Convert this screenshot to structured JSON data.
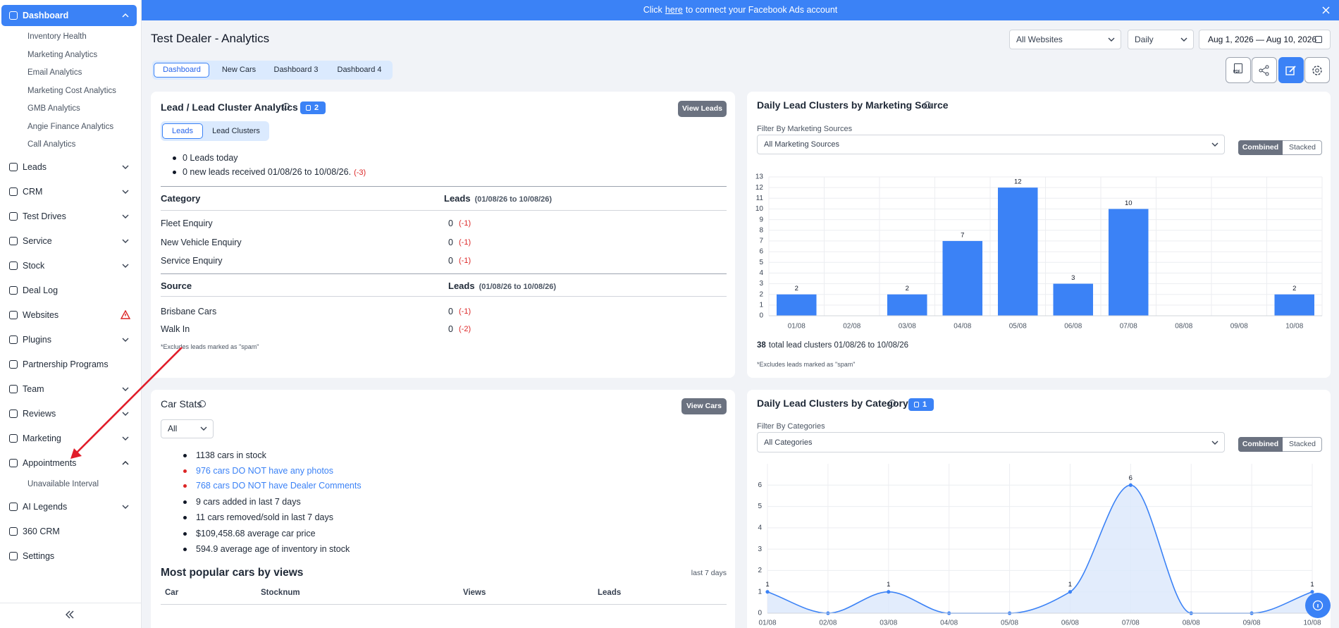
{
  "banner": {
    "before": "Click",
    "link": "here",
    "after": "to connect your Facebook Ads account"
  },
  "sidebar": {
    "items": [
      {
        "label": "Dashboard",
        "active": true,
        "expanded": true,
        "children": [
          "Inventory Health",
          "Marketing Analytics",
          "Email Analytics",
          "Marketing Cost Analytics",
          "GMB Analytics",
          "Angie Finance Analytics",
          "Call Analytics"
        ]
      },
      {
        "label": "Leads",
        "expandable": true
      },
      {
        "label": "CRM",
        "expandable": true
      },
      {
        "label": "Test Drives",
        "expandable": true
      },
      {
        "label": "Service",
        "expandable": true
      },
      {
        "label": "Stock",
        "expandable": true
      },
      {
        "label": "Deal Log"
      },
      {
        "label": "Websites",
        "alert": true
      },
      {
        "label": "Plugins",
        "expandable": true
      },
      {
        "label": "Partnership Programs"
      },
      {
        "label": "Team",
        "expandable": true
      },
      {
        "label": "Reviews",
        "expandable": true
      },
      {
        "label": "Marketing",
        "expandable": true
      },
      {
        "label": "Appointments",
        "expanded": true,
        "children": [
          "Unavailable Interval"
        ]
      },
      {
        "label": "AI Legends",
        "expandable": true
      },
      {
        "label": "360 CRM"
      },
      {
        "label": "Settings"
      }
    ]
  },
  "header": {
    "title": "Test Dealer - Analytics",
    "website_filter": "All Websites",
    "interval": "Daily",
    "date_range": "Aug 1, 2026 — Aug 10, 2026",
    "pdf_label": "PDF"
  },
  "tabs": {
    "items": [
      "Dashboard",
      "New Cars",
      "Dashboard 3",
      "Dashboard 4"
    ],
    "active": 0
  },
  "lead_panel": {
    "title": "Lead / Lead Cluster Analytics",
    "badge": 2,
    "button": "View Leads",
    "toggle": {
      "options": [
        "Leads",
        "Lead Clusters"
      ],
      "active": 0
    },
    "summary": [
      {
        "text": "0 Leads today"
      },
      {
        "text": "0 new leads received 01/08/26 to 10/08/26.",
        "change": "(-3)"
      }
    ],
    "tables": [
      {
        "heading": "Category",
        "value_heading": "Leads",
        "period": "(01/08/26 to 10/08/26)",
        "rows": [
          {
            "name": "Fleet Enquiry",
            "value": 0,
            "change": "(-1)"
          },
          {
            "name": "New Vehicle Enquiry",
            "value": 0,
            "change": "(-1)"
          },
          {
            "name": "Service Enquiry",
            "value": 0,
            "change": "(-1)"
          }
        ]
      },
      {
        "heading": "Source",
        "value_heading": "Leads",
        "period": "(01/08/26 to 10/08/26)",
        "rows": [
          {
            "name": "Brisbane Cars",
            "value": 0,
            "change": "(-1)"
          },
          {
            "name": "Walk In",
            "value": 0,
            "change": "(-2)"
          }
        ]
      }
    ],
    "footnote": "*Excludes leads marked as \"spam\""
  },
  "source_panel": {
    "title": "Daily Lead Clusters by Marketing Source",
    "filter_label": "Filter By Marketing Sources",
    "filter": "All Marketing Sources",
    "toggle": {
      "options": [
        "Combined",
        "Stacked"
      ],
      "active": 0
    },
    "total": 38,
    "total_text": "total lead clusters 01/08/26 to 10/08/26",
    "footnote": "*Excludes leads marked as \"spam\""
  },
  "car_panel": {
    "title": "Car Stats",
    "button": "View Cars",
    "filter": "All",
    "stats": [
      {
        "text": "1138 cars in stock"
      },
      {
        "text": "976 cars DO NOT have any photos",
        "warning": true
      },
      {
        "text": "768 cars DO NOT have Dealer Comments",
        "warning": true
      },
      {
        "text": "9 cars added in last 7 days"
      },
      {
        "text": "11 cars removed/sold in last 7 days"
      },
      {
        "text": "$109,458.68 average car price"
      },
      {
        "text": "594.9 average age of inventory in stock"
      }
    ],
    "popular": {
      "title": "Most popular cars by views",
      "period": "last 7 days",
      "columns": [
        "Car",
        "Stocknum",
        "Views",
        "Leads"
      ]
    }
  },
  "category_panel": {
    "title": "Daily Lead Clusters by Category",
    "badge": 1,
    "filter_label": "Filter By Categories",
    "filter": "All Categories",
    "toggle": {
      "options": [
        "Combined",
        "Stacked"
      ],
      "active": 0
    }
  },
  "chart_data": [
    {
      "type": "bar",
      "categories": [
        "01/08",
        "02/08",
        "03/08",
        "04/08",
        "05/08",
        "06/08",
        "07/08",
        "08/08",
        "09/08",
        "10/08"
      ],
      "values": [
        2,
        0,
        2,
        7,
        12,
        3,
        10,
        0,
        0,
        2
      ],
      "color": "#3b82f6",
      "ylim": [
        0,
        13
      ],
      "yticks": [
        0,
        1,
        2,
        3,
        4,
        5,
        6,
        7,
        8,
        9,
        10,
        11,
        12,
        13
      ],
      "grid": true
    },
    {
      "type": "area",
      "categories": [
        "01/08",
        "02/08",
        "03/08",
        "04/08",
        "05/08",
        "06/08",
        "07/08",
        "08/08",
        "09/08",
        "10/08"
      ],
      "values": [
        1,
        0,
        1,
        0,
        0,
        1,
        6,
        0,
        0,
        1
      ],
      "color": "#3b82f6",
      "fill": "#dbe7fb",
      "ylim": [
        0,
        7
      ],
      "yticks": [
        0,
        1,
        2,
        3,
        4,
        5,
        6
      ],
      "grid": true
    }
  ]
}
